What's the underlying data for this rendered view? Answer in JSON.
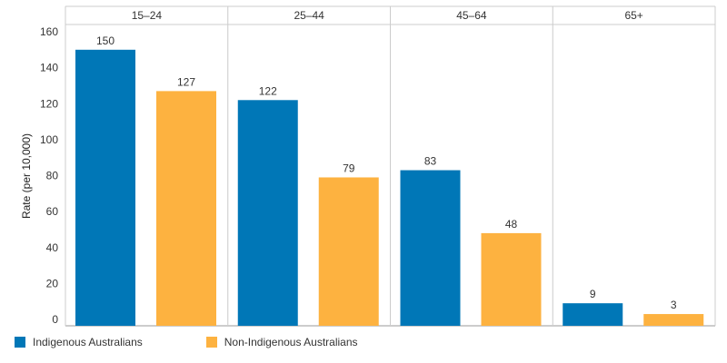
{
  "chart_data": {
    "type": "bar",
    "facets": [
      "15–24",
      "25–44",
      "45–64",
      "65+"
    ],
    "series": [
      {
        "name": "Indigenous Australians",
        "color": "#0077B7",
        "values": [
          150,
          122,
          83,
          9
        ]
      },
      {
        "name": "Non-Indigenous Australians",
        "color": "#FDB240",
        "values": [
          127,
          79,
          48,
          3
        ]
      }
    ],
    "ylabel": "Rate (per 10,000)",
    "ylim": [
      0,
      160
    ],
    "yticks": [
      0,
      20,
      40,
      60,
      80,
      100,
      120,
      140,
      160
    ],
    "legend_position": "bottom-left",
    "grid": false
  }
}
